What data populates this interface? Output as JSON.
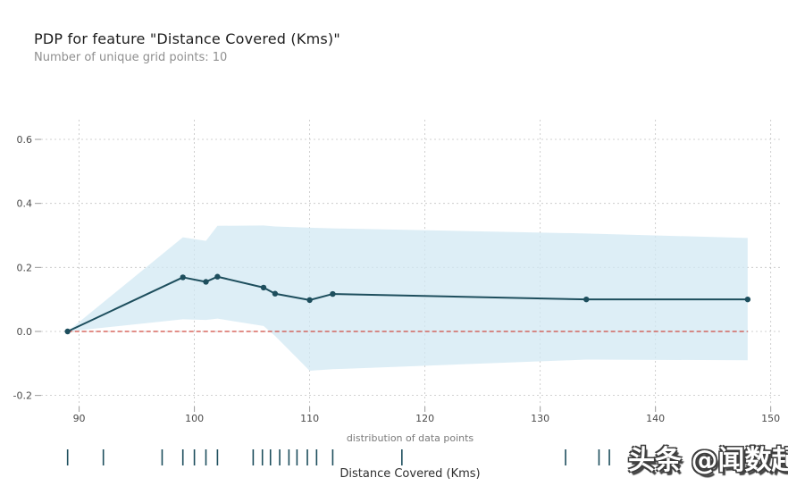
{
  "header": {
    "title": "PDP for feature \"Distance Covered (Kms)\"",
    "subtitle": "Number of unique grid points: 10"
  },
  "watermark": {
    "text": "头条 @闻数起舞"
  },
  "chart_data": {
    "type": "line",
    "title": "PDP for feature \"Distance Covered (Kms)\"",
    "subtitle": "Number of unique grid points: 10",
    "xlabel": "Distance Covered (Kms)",
    "ylabel": "",
    "rug_title": "distribution of data points",
    "x": [
      89,
      99,
      101,
      102,
      106,
      107,
      110,
      112,
      134,
      148
    ],
    "series": [
      {
        "name": "pdp",
        "values": [
          0.0,
          0.169,
          0.155,
          0.171,
          0.137,
          0.118,
          0.098,
          0.117,
          0.1,
          0.1
        ]
      },
      {
        "name": "band_upper",
        "values": [
          0.0,
          0.294,
          0.283,
          0.33,
          0.331,
          0.328,
          0.324,
          0.322,
          0.306,
          0.292
        ]
      },
      {
        "name": "band_lower",
        "values": [
          0.0,
          0.038,
          0.036,
          0.04,
          0.017,
          -0.014,
          -0.123,
          -0.118,
          -0.088,
          -0.09
        ]
      }
    ],
    "zero_line": 0.0,
    "xticks": [
      90,
      100,
      110,
      120,
      130,
      140,
      150
    ],
    "yticks": [
      -0.2,
      0.0,
      0.2,
      0.4,
      0.6
    ],
    "xlim": [
      86.7,
      150.8
    ],
    "ylim": [
      -0.2345,
      0.6615
    ],
    "grid": true,
    "legend_position": "none",
    "rug_points": [
      89.0,
      92.1,
      97.2,
      99.0,
      100.0,
      101.0,
      102.0,
      105.1,
      105.9,
      106.6,
      107.4,
      108.2,
      108.9,
      109.8,
      110.6,
      112.0,
      118.0,
      132.2,
      135.1,
      136.0
    ],
    "colors": {
      "line": "#1d4e5d",
      "marker": "#1d4e5d",
      "band": "#d2e8f3",
      "band_opacity": "0.75",
      "zero_line": "#d04b42",
      "grid": "#c3c3c3",
      "tick": "#9a9a9a",
      "tick_text": "#4a4a4a",
      "rug": "#1d4e5d"
    }
  }
}
